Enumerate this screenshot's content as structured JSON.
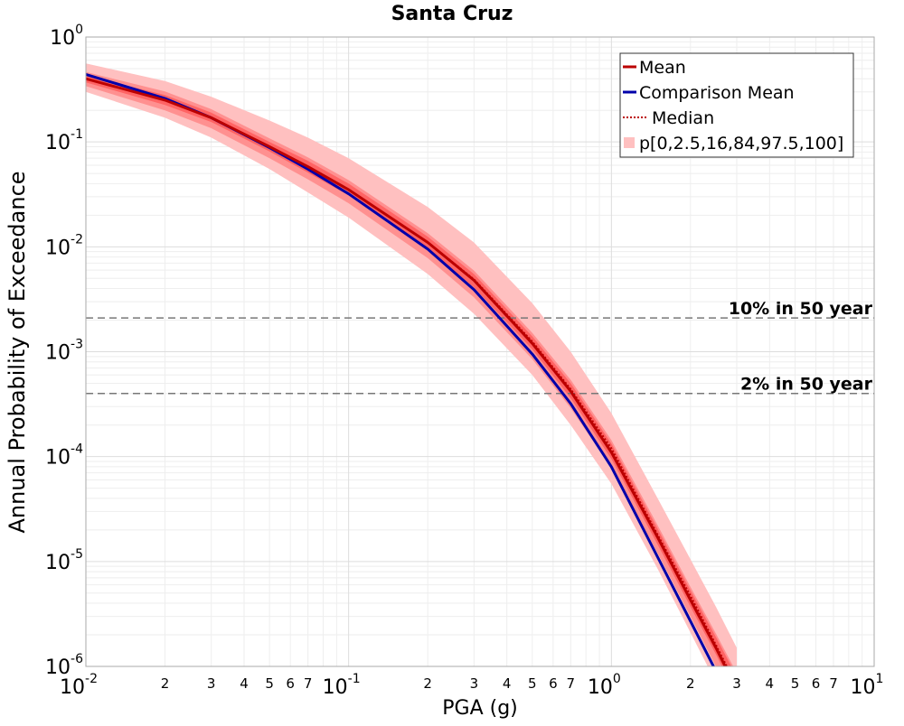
{
  "chart_data": {
    "type": "line",
    "title": "Santa Cruz",
    "xlabel": "PGA (g)",
    "ylabel": "Annual Probability of Exceedance",
    "xscale": "log",
    "yscale": "log",
    "xlim": [
      0.01,
      10
    ],
    "ylim": [
      1e-06,
      1
    ],
    "grid": true,
    "legend_position": "top-right",
    "x_major_ticks": [
      {
        "value": 0.01,
        "base": "10",
        "exp": "-2"
      },
      {
        "value": 0.1,
        "base": "10",
        "exp": "-1"
      },
      {
        "value": 1,
        "base": "10",
        "exp": "0"
      },
      {
        "value": 10,
        "base": "10",
        "exp": "1"
      }
    ],
    "x_minor_tick_labels": [
      "2",
      "3",
      "4",
      "5",
      "6",
      "7"
    ],
    "y_major_ticks": [
      {
        "value": 1,
        "base": "10",
        "exp": "0"
      },
      {
        "value": 0.1,
        "base": "10",
        "exp": "-1"
      },
      {
        "value": 0.01,
        "base": "10",
        "exp": "-2"
      },
      {
        "value": 0.001,
        "base": "10",
        "exp": "-3"
      },
      {
        "value": 0.0001,
        "base": "10",
        "exp": "-4"
      },
      {
        "value": 1e-05,
        "base": "10",
        "exp": "-5"
      },
      {
        "value": 1e-06,
        "base": "10",
        "exp": "-6"
      }
    ],
    "reference_lines": [
      {
        "label": "10% in 50 year",
        "y": 0.0021
      },
      {
        "label": "2% in 50 year",
        "y": 0.0004
      }
    ],
    "x": [
      0.01,
      0.02,
      0.03,
      0.05,
      0.07,
      0.1,
      0.2,
      0.3,
      0.5,
      0.7,
      1.0,
      1.5,
      2.0,
      2.5,
      3.0
    ],
    "series": [
      {
        "name": "Mean",
        "color": "#bb0000",
        "style": "solid",
        "values": [
          0.4,
          0.25,
          0.17,
          0.09,
          0.058,
          0.035,
          0.011,
          0.0048,
          0.0012,
          0.00042,
          0.00011,
          1.7e-05,
          4.3e-06,
          1.5e-06,
          6e-07
        ]
      },
      {
        "name": "Comparison Mean",
        "color": "#0000aa",
        "style": "solid",
        "values": [
          0.44,
          0.26,
          0.17,
          0.088,
          0.055,
          0.032,
          0.0095,
          0.0039,
          0.00095,
          0.00032,
          8e-05,
          1.1e-05,
          2.7e-06,
          9e-07,
          4e-07
        ]
      },
      {
        "name": "Median",
        "color": "#bb0000",
        "style": "dotted",
        "values": [
          0.4,
          0.25,
          0.17,
          0.09,
          0.058,
          0.035,
          0.011,
          0.0049,
          0.00125,
          0.00044,
          0.00012,
          1.8e-05,
          4.7e-06,
          1.6e-06,
          6.5e-07
        ]
      }
    ],
    "percentile_bands": {
      "name": "p[0,2.5,16,84,97.5,100]",
      "outer": {
        "color": "#ffc0c0",
        "lower": [
          0.3,
          0.17,
          0.11,
          0.055,
          0.033,
          0.019,
          0.0055,
          0.0023,
          0.0006,
          0.0002,
          5.5e-05,
          8.5e-06,
          2.1e-06,
          7e-07,
          3e-07
        ],
        "upper": [
          0.56,
          0.38,
          0.27,
          0.16,
          0.11,
          0.07,
          0.024,
          0.011,
          0.0029,
          0.001,
          0.00026,
          4e-05,
          1.05e-05,
          3.7e-06,
          1.5e-06
        ]
      },
      "middle": {
        "color": "#ff9090",
        "lower": [
          0.34,
          0.2,
          0.135,
          0.07,
          0.044,
          0.026,
          0.0078,
          0.0033,
          0.00085,
          0.00029,
          7.8e-05,
          1.2e-05,
          3e-06,
          1e-06,
          4.2e-07
        ]
      },
      "inner": {
        "color": "#ff6464",
        "lower": [
          0.37,
          0.225,
          0.155,
          0.081,
          0.051,
          0.031,
          0.0096,
          0.0041,
          0.00105,
          0.00036,
          9.5e-05,
          1.45e-05,
          3.7e-06,
          1.3e-06,
          5.2e-07
        ],
        "upper": [
          0.43,
          0.28,
          0.19,
          0.1,
          0.066,
          0.04,
          0.0125,
          0.0055,
          0.0014,
          0.0005,
          0.000133,
          2.05e-05,
          5.3e-06,
          1.9e-06,
          8e-07
        ]
      }
    }
  }
}
